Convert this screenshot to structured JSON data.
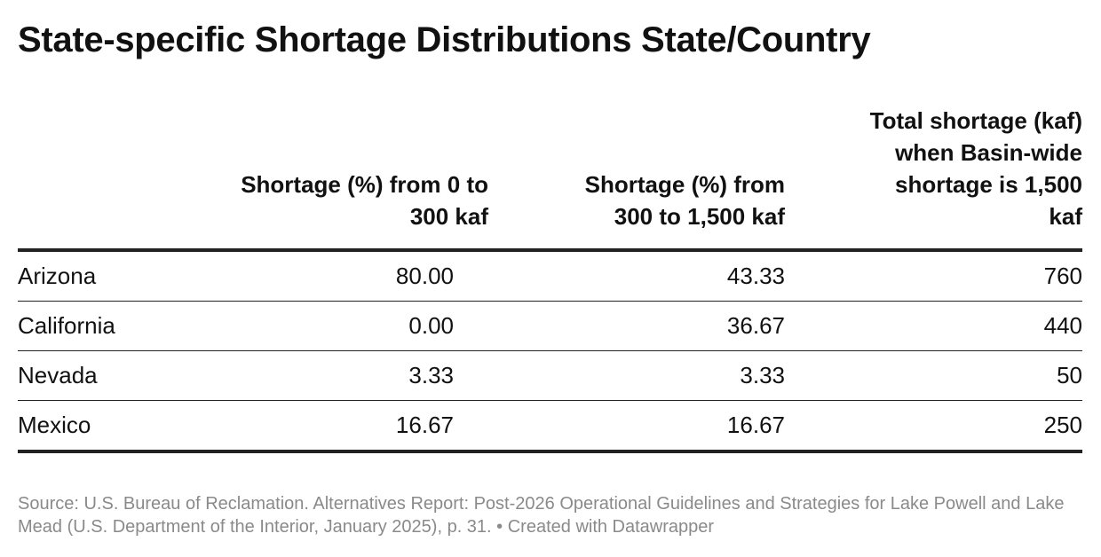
{
  "title": "State-specific Shortage Distributions State/Country",
  "table": {
    "header": [
      "Shortage (%) from 0 to 300 kaf",
      "Shortage (%) from 300 to 1,500 kaf",
      "Total shortage (kaf) when Basin-wide shortage is 1,500 kaf"
    ],
    "rows": [
      [
        "Arizona",
        "80.00",
        "43.33",
        "760"
      ],
      [
        "California",
        "0.00",
        "36.67",
        "440"
      ],
      [
        "Nevada",
        "3.33",
        "3.33",
        "50"
      ],
      [
        "Mexico",
        "16.67",
        "16.67",
        "250"
      ]
    ]
  },
  "source": "Source: U.S. Bureau of Reclamation. Alternatives Report: Post-2026 Operational Guidelines and Strategies for Lake Powell and Lake Mead (U.S. Department of the Interior, January 2025), p. 31. • Created with Datawrapper"
}
